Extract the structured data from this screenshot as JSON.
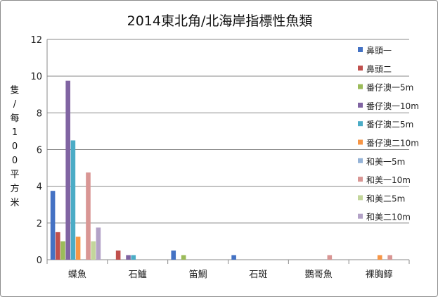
{
  "chart_data": {
    "type": "bar",
    "title": "2014東北角/北海岸指標性魚類",
    "ylabel": "隻/每100平方米",
    "xlabel": "",
    "ylim": [
      0,
      12
    ],
    "yticks": [
      0,
      2,
      4,
      6,
      8,
      10,
      12
    ],
    "grid": true,
    "legend_position": "right",
    "categories": [
      "蝶魚",
      "石鱸",
      "笛鯛",
      "石斑",
      "鸚哥魚",
      "裸胸鯙"
    ],
    "series": [
      {
        "name": "鼻頭一",
        "color": "#4472C4",
        "values": [
          3.75,
          0,
          0.5,
          0.25,
          0,
          0
        ]
      },
      {
        "name": "鼻頭二",
        "color": "#C0504D",
        "values": [
          1.5,
          0.5,
          0,
          0,
          0,
          0
        ]
      },
      {
        "name": "番仔澳一5m",
        "color": "#9BBB59",
        "values": [
          1.0,
          0,
          0.25,
          0,
          0,
          0
        ]
      },
      {
        "name": "番仔澳一10m",
        "color": "#8064A2",
        "values": [
          9.75,
          0.25,
          0,
          0,
          0,
          0
        ]
      },
      {
        "name": "番仔澳二5m",
        "color": "#4BACC6",
        "values": [
          6.5,
          0.25,
          0,
          0,
          0,
          0
        ]
      },
      {
        "name": "番仔澳二10m",
        "color": "#F79646",
        "values": [
          1.25,
          0,
          0,
          0,
          0,
          0.25
        ]
      },
      {
        "name": "和美一5m",
        "color": "#95B3D7",
        "values": [
          0,
          0,
          0,
          0,
          0,
          0
        ]
      },
      {
        "name": "和美一10m",
        "color": "#D99694",
        "values": [
          4.75,
          0,
          0,
          0,
          0.25,
          0.25
        ]
      },
      {
        "name": "和美二5m",
        "color": "#C3D69B",
        "values": [
          1.0,
          0,
          0,
          0,
          0,
          0
        ]
      },
      {
        "name": "和美二10m",
        "color": "#B3A2C7",
        "values": [
          1.75,
          0,
          0,
          0,
          0,
          0
        ]
      }
    ]
  }
}
